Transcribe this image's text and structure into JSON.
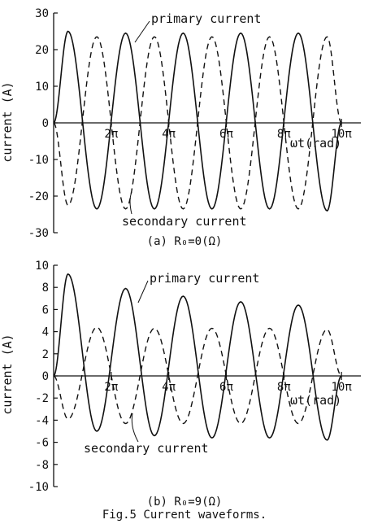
{
  "chart_data": [
    {
      "type": "line",
      "panel": "a",
      "caption": "(a) R₀=0(Ω)",
      "ylabel": "current (A)",
      "xlabel": "ωt(rad)",
      "ylim": [
        -30,
        30
      ],
      "xlim": [
        0,
        33.0
      ],
      "yticks": [
        -30,
        -20,
        -10,
        0,
        10,
        20,
        30
      ],
      "ytick_labels": [
        "-30",
        "-20",
        "-10",
        "0",
        "10",
        "20",
        "30"
      ],
      "xticks": [
        6.283,
        12.566,
        18.85,
        25.133,
        31.416
      ],
      "xtick_labels": [
        "2π",
        "4π",
        "6π",
        "8π",
        "10π"
      ],
      "series": [
        {
          "name": "primary current",
          "style": "solid",
          "x": [
            0,
            1.571,
            4.712,
            7.854,
            10.996,
            14.137,
            17.279,
            20.42,
            23.562,
            26.704,
            29.845,
            31.416
          ],
          "y": [
            0,
            25,
            -23.5,
            24.5,
            -23.5,
            24.5,
            -23.5,
            24.5,
            -23.5,
            24.5,
            -24,
            0
          ]
        },
        {
          "name": "secondary current",
          "style": "dashed",
          "x": [
            0,
            1.571,
            4.712,
            7.854,
            10.996,
            14.137,
            17.279,
            20.42,
            23.562,
            26.704,
            29.845,
            31.416
          ],
          "y": [
            0,
            -22.5,
            23.5,
            -23.5,
            23.5,
            -23.5,
            23.5,
            -23.5,
            23.5,
            -23.5,
            23.5,
            0
          ]
        }
      ]
    },
    {
      "type": "line",
      "panel": "b",
      "caption": "(b) R₀=9(Ω)",
      "ylabel": "current (A)",
      "xlabel": "ωt(rad)",
      "ylim": [
        -10,
        10
      ],
      "xlim": [
        0,
        33.0
      ],
      "yticks": [
        -10,
        -8,
        -6,
        -4,
        -2,
        0,
        2,
        4,
        6,
        8,
        10
      ],
      "ytick_labels": [
        "-10",
        "-8",
        "-6",
        "-4",
        "-2",
        "0",
        "2",
        "4",
        "6",
        "8",
        "10"
      ],
      "xticks": [
        6.283,
        12.566,
        18.85,
        25.133,
        31.416
      ],
      "xtick_labels": [
        "2π",
        "4π",
        "6π",
        "8π",
        "10π"
      ],
      "series": [
        {
          "name": "primary current",
          "style": "solid",
          "x": [
            0,
            1.571,
            4.712,
            7.854,
            10.996,
            14.137,
            17.279,
            20.42,
            23.562,
            26.704,
            29.845,
            31.416
          ],
          "y": [
            0,
            9.2,
            -5.0,
            7.9,
            -5.4,
            7.2,
            -5.6,
            6.7,
            -5.6,
            6.4,
            -5.8,
            0
          ]
        },
        {
          "name": "secondary current",
          "style": "dashed",
          "x": [
            0,
            1.571,
            4.712,
            7.854,
            10.996,
            14.137,
            17.279,
            20.42,
            23.562,
            26.704,
            29.845,
            31.416
          ],
          "y": [
            0,
            -3.9,
            4.4,
            -4.3,
            4.3,
            -4.3,
            4.3,
            -4.3,
            4.3,
            -4.3,
            4.2,
            0
          ]
        }
      ]
    }
  ],
  "figure_caption": "Fig.5 Current waveforms."
}
